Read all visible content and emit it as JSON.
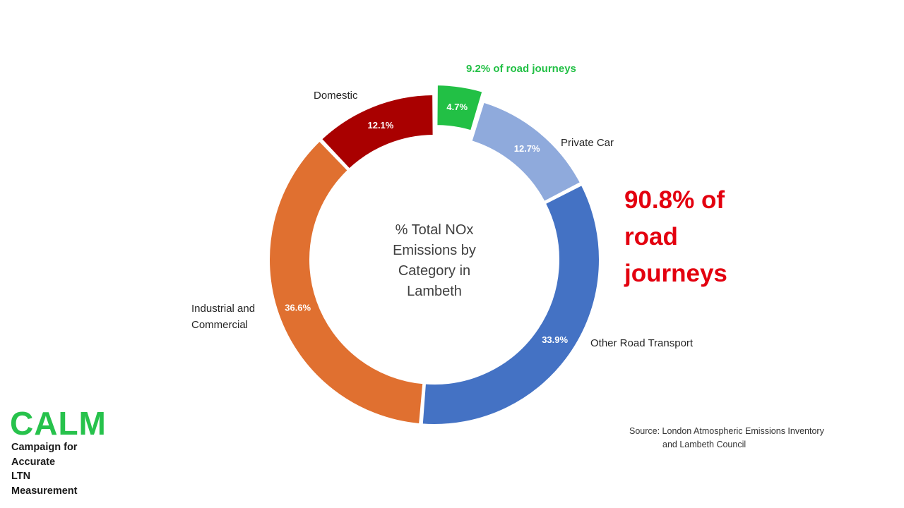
{
  "chart_data": {
    "type": "pie",
    "style": "donut",
    "center_title_lines": [
      "% Total NOx",
      "Emissions by",
      "Category in",
      "Lambeth"
    ],
    "slices": [
      {
        "label": "",
        "value": 4.7,
        "display": "4.7%",
        "color": "#22c045",
        "exploded": true
      },
      {
        "label": "Private Car",
        "value": 12.7,
        "display": "12.7%",
        "color": "#8faadc"
      },
      {
        "label": "Other Road Transport",
        "value": 33.9,
        "display": "33.9%",
        "color": "#4472c4"
      },
      {
        "label": "Industrial and Commercial",
        "label_lines": [
          "Industrial and",
          "Commercial"
        ],
        "value": 36.6,
        "display": "36.6%",
        "color": "#e07030"
      },
      {
        "label": "Domestic",
        "value": 12.1,
        "display": "12.1%",
        "color": "#a90000"
      }
    ],
    "annotations": {
      "green_note": "9.2% of road journeys",
      "red_note_lines": [
        "90.8% of",
        "road",
        "journeys"
      ]
    }
  },
  "source": {
    "line1": "Source: London Atmospheric Emissions Inventory",
    "line2": "and Lambeth Council"
  },
  "logo": {
    "word": "CALM",
    "subtitle_lines": [
      "Campaign for",
      "Accurate",
      "LTN",
      "Measurement"
    ],
    "color": "#27c24c"
  }
}
